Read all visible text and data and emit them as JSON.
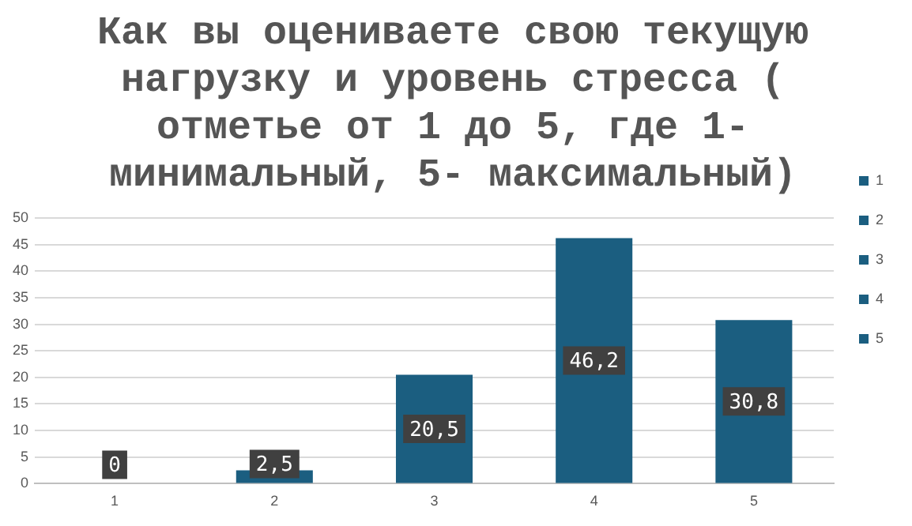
{
  "chart_data": {
    "type": "bar",
    "title": "Как вы оцениваете свою текущую нагрузку и уровень стресса ( отметье от 1 до 5, где 1- минимальный, 5- максимальный)",
    "categories": [
      "1",
      "2",
      "3",
      "4",
      "5"
    ],
    "series": [
      {
        "name": "1",
        "color": "#1b5e80",
        "values": [
          0,
          null,
          null,
          null,
          null
        ],
        "value_labels": [
          "0",
          null,
          null,
          null,
          null
        ]
      },
      {
        "name": "2",
        "color": "#1b5e80",
        "values": [
          null,
          2.5,
          null,
          null,
          null
        ],
        "value_labels": [
          null,
          "2,5",
          null,
          null,
          null
        ]
      },
      {
        "name": "3",
        "color": "#1b5e80",
        "values": [
          null,
          null,
          20.5,
          null,
          null
        ],
        "value_labels": [
          null,
          null,
          "20,5",
          null,
          null
        ]
      },
      {
        "name": "4",
        "color": "#1b5e80",
        "values": [
          null,
          null,
          null,
          46.2,
          null
        ],
        "value_labels": [
          null,
          null,
          null,
          "46,2",
          null
        ]
      },
      {
        "name": "5",
        "color": "#1b5e80",
        "values": [
          null,
          null,
          null,
          null,
          30.8
        ],
        "value_labels": [
          null,
          null,
          null,
          null,
          "30,8"
        ]
      }
    ],
    "ylim": [
      0,
      50
    ],
    "yticks": [
      0,
      5,
      10,
      15,
      20,
      25,
      30,
      35,
      40,
      45,
      50
    ],
    "grid": "y",
    "legend": "right"
  }
}
